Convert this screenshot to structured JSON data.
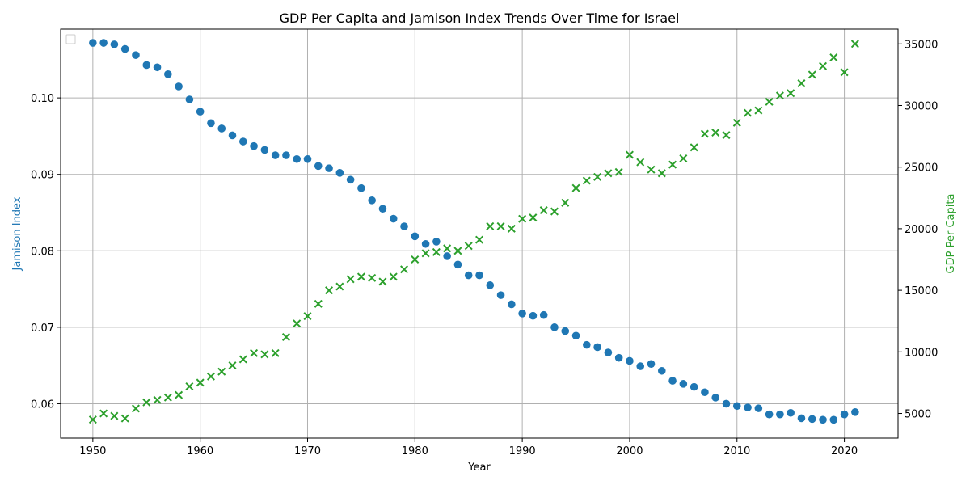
{
  "chart_data": {
    "type": "scatter",
    "title": "GDP Per Capita and Jamison Index Trends Over Time for Israel",
    "xlabel": "Year",
    "ylabel_left": "Jamison Index",
    "ylabel_right": "GDP Per Capita",
    "xlim": [
      1947,
      2025
    ],
    "ylim_left": [
      0.0555,
      0.109
    ],
    "ylim_right": [
      3000,
      36200
    ],
    "x_ticks": [
      1950,
      1960,
      1970,
      1980,
      1990,
      2000,
      2010,
      2020
    ],
    "y_ticks_left": [
      0.06,
      0.07,
      0.08,
      0.09,
      0.1
    ],
    "y_ticks_right": [
      5000,
      10000,
      15000,
      20000,
      25000,
      30000,
      35000
    ],
    "grid": true,
    "legend": "top-left",
    "colors": {
      "jamison": "#1f77b4",
      "gdp": "#2ca02c"
    },
    "x": [
      1950,
      1951,
      1952,
      1953,
      1954,
      1955,
      1956,
      1957,
      1958,
      1959,
      1960,
      1961,
      1962,
      1963,
      1964,
      1965,
      1966,
      1967,
      1968,
      1969,
      1970,
      1971,
      1972,
      1973,
      1974,
      1975,
      1976,
      1977,
      1978,
      1979,
      1980,
      1981,
      1982,
      1983,
      1984,
      1985,
      1986,
      1987,
      1988,
      1989,
      1990,
      1991,
      1992,
      1993,
      1994,
      1995,
      1996,
      1997,
      1998,
      1999,
      2000,
      2001,
      2002,
      2003,
      2004,
      2005,
      2006,
      2007,
      2008,
      2009,
      2010,
      2011,
      2012,
      2013,
      2014,
      2015,
      2016,
      2017,
      2018,
      2019,
      2020,
      2021
    ],
    "series": [
      {
        "name": "",
        "axis": "left",
        "marker": "circle",
        "values": [
          0.1072,
          0.1072,
          0.107,
          0.1064,
          0.1056,
          0.1043,
          0.104,
          0.1031,
          0.1015,
          0.0998,
          0.0982,
          0.0967,
          0.096,
          0.0951,
          0.0943,
          0.0937,
          0.0932,
          0.0925,
          0.0925,
          0.092,
          0.092,
          0.0911,
          0.0908,
          0.0902,
          0.0893,
          0.0882,
          0.0866,
          0.0855,
          0.0842,
          0.0832,
          0.0819,
          0.0809,
          0.0812,
          0.0793,
          0.0782,
          0.0768,
          0.0768,
          0.0755,
          0.0742,
          0.073,
          0.0718,
          0.0715,
          0.0716,
          0.07,
          0.0695,
          0.0689,
          0.0677,
          0.0674,
          0.0667,
          0.066,
          0.0656,
          0.0649,
          0.0652,
          0.0643,
          0.063,
          0.0626,
          0.0622,
          0.0615,
          0.0608,
          0.06,
          0.0597,
          0.0595,
          0.0594,
          0.0586,
          0.0586,
          0.0588,
          0.0581,
          0.058,
          0.0579,
          0.0579,
          0.0586,
          0.0589
        ]
      },
      {
        "name": "",
        "axis": "right",
        "marker": "x",
        "values": [
          4500,
          5000,
          4800,
          4600,
          5400,
          5900,
          6100,
          6300,
          6500,
          7200,
          7500,
          8000,
          8400,
          8900,
          9400,
          9900,
          9800,
          9900,
          11200,
          12300,
          12900,
          13900,
          15000,
          15300,
          15900,
          16100,
          16000,
          15700,
          16100,
          16700,
          17500,
          18000,
          18100,
          18400,
          18200,
          18600,
          19100,
          20200,
          20200,
          20000,
          20800,
          20900,
          21500,
          21400,
          22100,
          23300,
          23900,
          24200,
          24500,
          24600,
          26000,
          25400,
          24800,
          24500,
          25200,
          25700,
          26600,
          27700,
          27800,
          27600,
          28600,
          29400,
          29600,
          30300,
          30800,
          31000,
          31800,
          32500,
          33200,
          33900,
          32700,
          35000
        ]
      }
    ]
  }
}
